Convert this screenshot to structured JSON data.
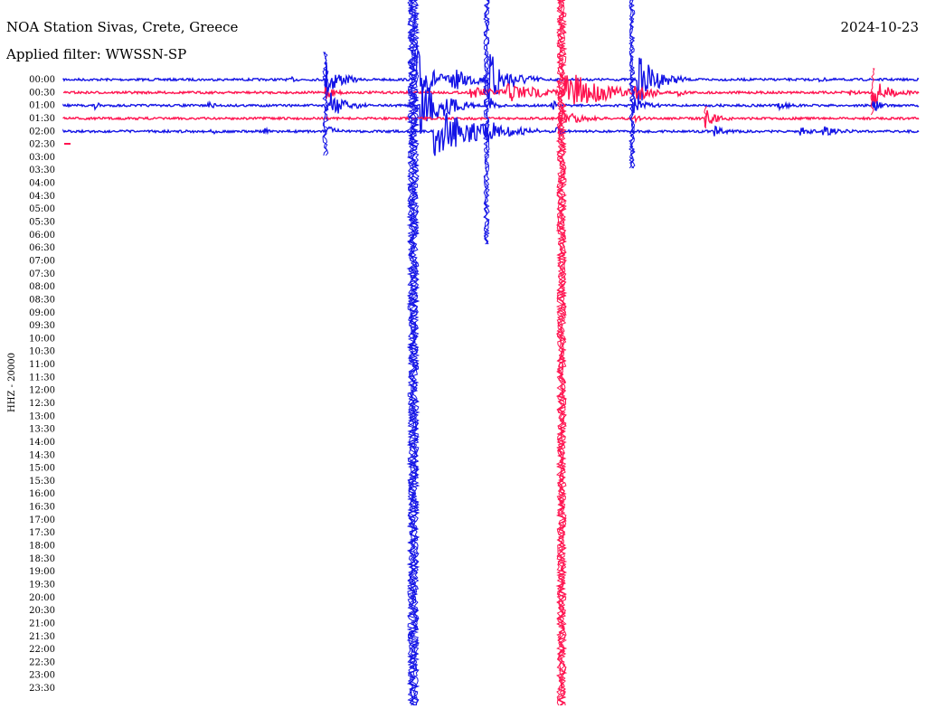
{
  "header": {
    "title": "NOA Station Sivas, Crete, Greece",
    "date": "2024-10-23",
    "filter": "Applied filter: WWSSN-SP"
  },
  "axis": {
    "label": "HHZ - 20000",
    "rows": [
      "00:00",
      "00:30",
      "01:00",
      "01:30",
      "02:00",
      "02:30",
      "03:00",
      "03:30",
      "04:00",
      "04:30",
      "05:00",
      "05:30",
      "06:00",
      "06:30",
      "07:00",
      "07:30",
      "08:00",
      "08:30",
      "09:00",
      "09:30",
      "10:00",
      "10:30",
      "11:00",
      "11:30",
      "12:00",
      "12:30",
      "13:00",
      "13:30",
      "14:00",
      "14:30",
      "15:00",
      "15:30",
      "16:00",
      "16:30",
      "17:00",
      "17:30",
      "18:00",
      "18:30",
      "19:00",
      "19:30",
      "20:00",
      "20:30",
      "21:00",
      "21:30",
      "22:00",
      "22:30",
      "23:00",
      "23:30"
    ]
  }
}
